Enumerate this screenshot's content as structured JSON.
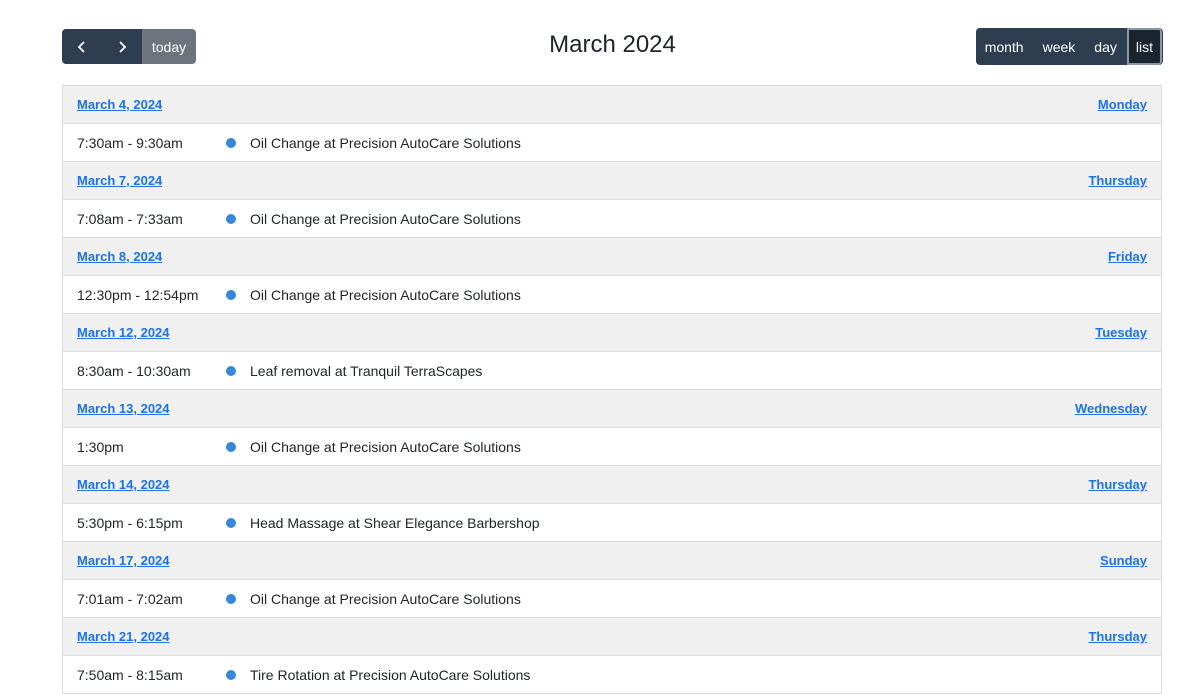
{
  "toolbar": {
    "title": "March 2024",
    "today_label": "today",
    "views": [
      "month",
      "week",
      "day",
      "list"
    ],
    "active_view": "list"
  },
  "days": [
    {
      "date": "March 4, 2024",
      "weekday": "Monday",
      "events": [
        {
          "time": "7:30am - 9:30am",
          "title": "Oil Change at Precision AutoCare Solutions"
        }
      ]
    },
    {
      "date": "March 7, 2024",
      "weekday": "Thursday",
      "events": [
        {
          "time": "7:08am - 7:33am",
          "title": "Oil Change at Precision AutoCare Solutions"
        }
      ]
    },
    {
      "date": "March 8, 2024",
      "weekday": "Friday",
      "events": [
        {
          "time": "12:30pm - 12:54pm",
          "title": "Oil Change at Precision AutoCare Solutions"
        }
      ]
    },
    {
      "date": "March 12, 2024",
      "weekday": "Tuesday",
      "events": [
        {
          "time": "8:30am - 10:30am",
          "title": "Leaf removal at Tranquil TerraScapes"
        }
      ]
    },
    {
      "date": "March 13, 2024",
      "weekday": "Wednesday",
      "events": [
        {
          "time": "1:30pm",
          "title": "Oil Change at Precision AutoCare Solutions"
        }
      ]
    },
    {
      "date": "March 14, 2024",
      "weekday": "Thursday",
      "events": [
        {
          "time": "5:30pm - 6:15pm",
          "title": "Head Massage at Shear Elegance Barbershop"
        }
      ]
    },
    {
      "date": "March 17, 2024",
      "weekday": "Sunday",
      "events": [
        {
          "time": "7:01am - 7:02am",
          "title": "Oil Change at Precision AutoCare Solutions"
        }
      ]
    },
    {
      "date": "March 21, 2024",
      "weekday": "Thursday",
      "events": [
        {
          "time": "7:50am - 8:15am",
          "title": "Tire Rotation at Precision AutoCare Solutions"
        }
      ]
    }
  ],
  "colors": {
    "button_bg": "#2c3e50",
    "today_bg": "#6c757d",
    "link": "#1a73e8",
    "event_dot": "#3788d8",
    "day_header_bg": "#f0f0f0"
  },
  "icons": {
    "prev": "chevron-left-icon",
    "next": "chevron-right-icon",
    "event": "event-dot-icon"
  }
}
